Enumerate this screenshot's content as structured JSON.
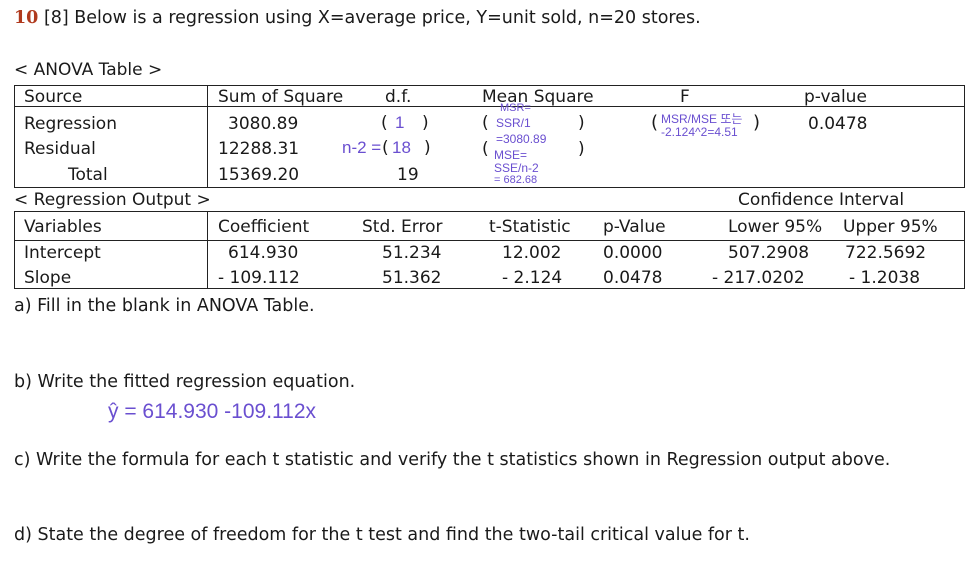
{
  "question": {
    "number": "10",
    "text": "[8] Below is a regression using X=average price, Y=unit sold, n=20 stores."
  },
  "anova": {
    "title": "< ANOVA Table >",
    "headers": [
      "Source",
      "Sum of Square",
      "d.f.",
      "Mean Square",
      "F",
      "p-value"
    ],
    "rows": [
      {
        "source": "Regression",
        "ss": "3080.89",
        "df_open": "(",
        "df_close": ")"
      },
      {
        "source": "Residual",
        "ss": "12288.31",
        "df_open": "(",
        "df_close": ")"
      },
      {
        "source": "Total",
        "ss": "15369.20",
        "df": "19"
      }
    ],
    "ms_parens": [
      "(",
      ")",
      "(",
      ")"
    ],
    "f_parens": [
      "(",
      ")"
    ],
    "pvalue": "0.0478"
  },
  "handwriting": {
    "df_regression": "1",
    "df_residual_formula": "n-2 =",
    "df_residual": "18",
    "ms_regression_1": "MSR=",
    "ms_regression_2": "SSR/1",
    "ms_regression_3": "=3080.89",
    "ms_residual_1": "MSE=",
    "ms_residual_2": "SSE/n-2",
    "ms_residual_3": "= 682.68",
    "f_line1": "MSR/MSE 또는",
    "f_line2": "-2.124^2=4.51",
    "answer_b": "ŷ = 614.930 -109.112x"
  },
  "regression": {
    "title": "< Regression Output >",
    "ci_label": "Confidence Interval",
    "headers": [
      "Variables",
      "Coefficient",
      "Std. Error",
      "t-Statistic",
      "p-Value",
      "Lower 95%",
      "Upper 95%"
    ],
    "rows": [
      [
        "Intercept",
        "614.930",
        "51.234",
        "12.002",
        "0.0000",
        "507.2908",
        "722.5692"
      ],
      [
        "Slope",
        "- 109.112",
        "51.362",
        "- 2.124",
        "0.0478",
        "- 217.0202",
        "- 1.2038"
      ]
    ]
  },
  "parts": {
    "a": "a) Fill in the blank in ANOVA Table.",
    "b": "b) Write the fitted regression equation.",
    "c": "c) Write the formula for each t statistic and verify the t statistics shown in Regression output above.",
    "d": "d)  State the degree of freedom for the t test and find the two-tail critical value for t."
  }
}
